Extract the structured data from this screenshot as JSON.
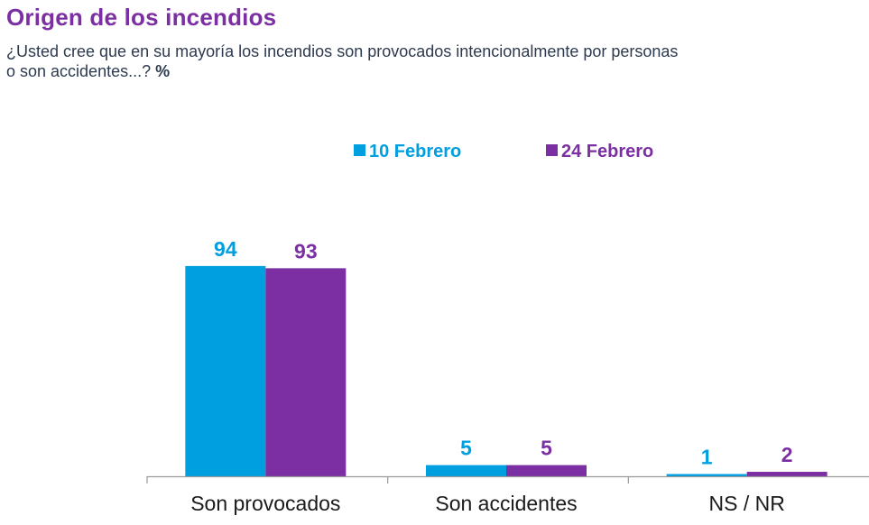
{
  "header": {
    "title": "Origen de los incendios",
    "subtitle_line1": "¿Usted cree que en su mayoría los incendios son provocados intencionalmente por personas",
    "subtitle_line2": "o son accidentes...?",
    "unit_marker": "%"
  },
  "colors": {
    "title": "#7b2fa3",
    "series_1": "#009fe0",
    "series_2": "#7b2fa3",
    "axis": "#9a9a9a"
  },
  "chart_data": {
    "type": "bar",
    "title": "Origen de los incendios",
    "subtitle": "¿Usted cree que en su mayoría los incendios son provocados intencionalmente por personas o son accidentes...? %",
    "categories": [
      "Son provocados",
      "Son accidentes",
      "NS / NR"
    ],
    "series": [
      {
        "name": "10 Febrero",
        "color": "#009fe0",
        "values": [
          94,
          5,
          1
        ]
      },
      {
        "name": "24 Febrero",
        "color": "#7b2fa3",
        "values": [
          93,
          5,
          2
        ]
      }
    ],
    "xlabel": "",
    "ylabel": "",
    "ylim": [
      0,
      100
    ],
    "grid": false,
    "legend": "top-center",
    "data_labels": true
  }
}
